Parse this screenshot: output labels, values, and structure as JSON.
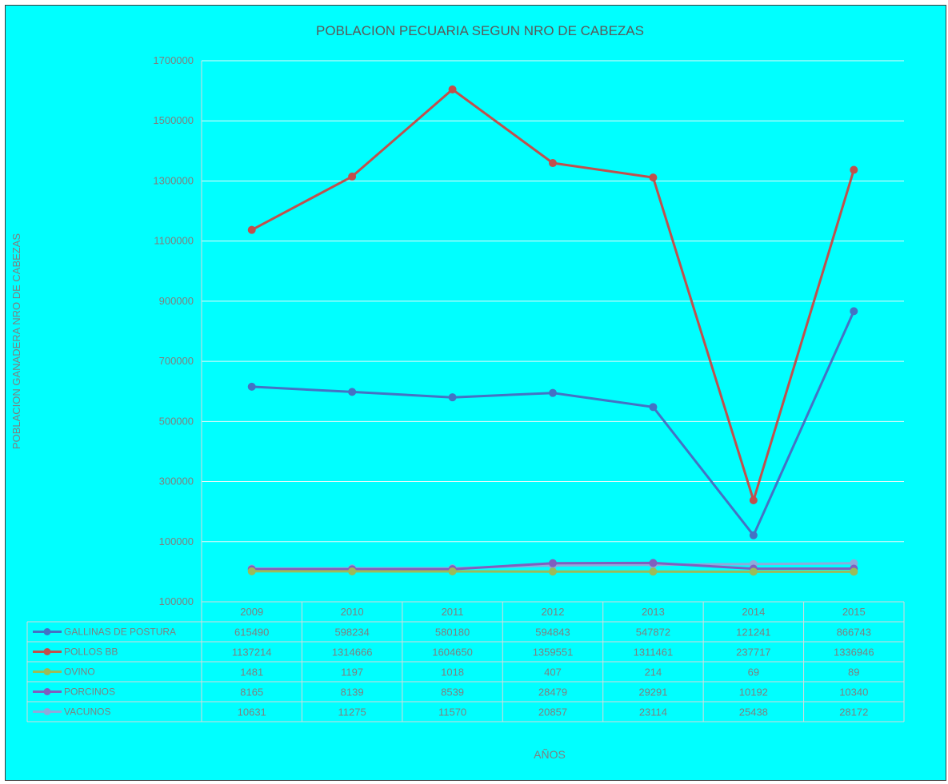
{
  "chart_data": {
    "type": "line",
    "title": "POBLACION PECUARIA SEGUN NRO DE CABEZAS",
    "ylabel": "POBLACION GANADERA NRO DE CABEZAS",
    "xlabel": "AÑOS",
    "categories": [
      "2009",
      "2010",
      "2011",
      "2012",
      "2013",
      "2014",
      "2015"
    ],
    "y_ticks": [
      "1700000",
      "1500000",
      "1300000",
      "1100000",
      "900000",
      "700000",
      "500000",
      "300000",
      "100000",
      "100000"
    ],
    "ylim": [
      -100000,
      1700000
    ],
    "grid": true,
    "legend": "data-table",
    "series": [
      {
        "name": "GALLINAS DE POSTURA",
        "color": "#4472c4",
        "values": [
          615490,
          598234,
          580180,
          594843,
          547872,
          121241,
          866743
        ],
        "labels": [
          "615490",
          "598234",
          "580180",
          "594843",
          "547872",
          "121241",
          "866743"
        ]
      },
      {
        "name": "POLLOS BB",
        "color": "#c0504d",
        "values": [
          1137214,
          1314666,
          1604650,
          1359551,
          1311461,
          237717,
          1336946
        ],
        "labels": [
          "1137214",
          "1314666",
          "1604650",
          "1359551",
          "1311461",
          "237717",
          "1336946"
        ]
      },
      {
        "name": "OVINO",
        "color": "#9bbb59",
        "values": [
          1481,
          1197,
          1018,
          407,
          214,
          69,
          89
        ],
        "labels": [
          "1481",
          "1197",
          "1018",
          "407",
          "214",
          "69",
          "89"
        ]
      },
      {
        "name": "PORCINOS",
        "color": "#7f5fbf",
        "values": [
          8165,
          8139,
          8539,
          28479,
          29291,
          10192,
          10340
        ],
        "labels": [
          "8165",
          "8139",
          "8539",
          "28479",
          "29291",
          "10192",
          "10340"
        ]
      },
      {
        "name": "VACUNOS",
        "color": "#8eaadb",
        "values": [
          10631,
          11275,
          11570,
          20857,
          23114,
          25438,
          28172
        ],
        "labels": [
          "10631",
          "11275",
          "11570",
          "20857",
          "23114",
          "25438",
          "28172"
        ]
      }
    ]
  }
}
